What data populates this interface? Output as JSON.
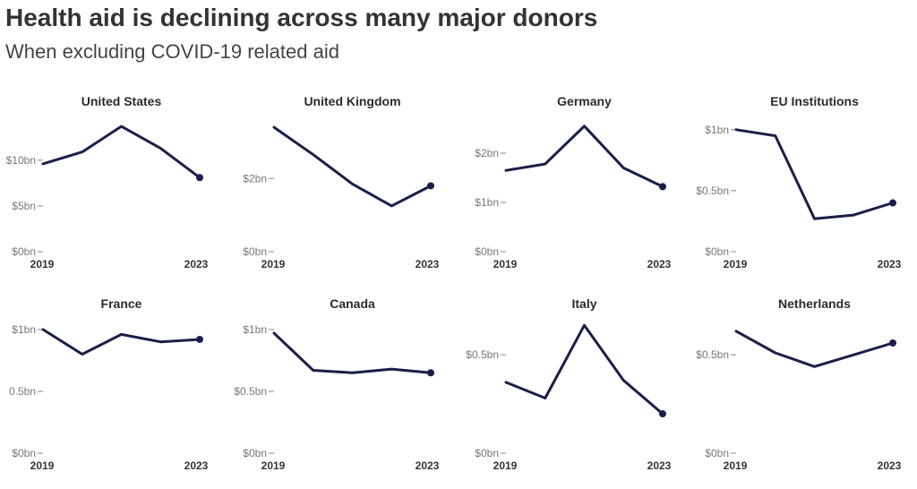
{
  "title": "Health aid is declining across many major donors",
  "subtitle": "When excluding COVID-19 related aid",
  "colors": {
    "line": "#1a1f4a",
    "tick": "#888888",
    "text": "#2b2b2b"
  },
  "chart_data": [
    {
      "type": "line",
      "title": "United States",
      "x": [
        2019,
        2020,
        2021,
        2022,
        2023
      ],
      "series": [
        {
          "values": [
            9.6,
            10.9,
            13.7,
            11.3,
            8.1
          ]
        }
      ],
      "ylim": [
        0,
        14
      ],
      "yticks": [
        0,
        5,
        10
      ],
      "ytick_labels": [
        "$0bn",
        "$5bn",
        "$10bn"
      ],
      "xtick_labels": [
        "2019",
        "2023"
      ]
    },
    {
      "type": "line",
      "title": "United Kingdom",
      "x": [
        2019,
        2020,
        2021,
        2022,
        2023
      ],
      "series": [
        {
          "values": [
            3.4,
            2.65,
            1.85,
            1.25,
            1.8
          ]
        }
      ],
      "ylim": [
        0,
        3.5
      ],
      "yticks": [
        0,
        2
      ],
      "ytick_labels": [
        "$0bn",
        "$2bn"
      ],
      "xtick_labels": [
        "2019",
        "2023"
      ]
    },
    {
      "type": "line",
      "title": "Germany",
      "x": [
        2019,
        2020,
        2021,
        2022,
        2023
      ],
      "series": [
        {
          "values": [
            1.65,
            1.78,
            2.55,
            1.7,
            1.32
          ]
        }
      ],
      "ylim": [
        0,
        2.6
      ],
      "yticks": [
        0,
        1,
        2
      ],
      "ytick_labels": [
        "$0bn",
        "$1bn",
        "$2bn"
      ],
      "xtick_labels": [
        "2019",
        "2023"
      ]
    },
    {
      "type": "line",
      "title": "EU Institutions",
      "x": [
        2019,
        2020,
        2021,
        2022,
        2023
      ],
      "series": [
        {
          "values": [
            1.0,
            0.95,
            0.27,
            0.3,
            0.4
          ]
        }
      ],
      "ylim": [
        0,
        1.05
      ],
      "yticks": [
        0,
        0.5,
        1
      ],
      "ytick_labels": [
        "$0bn",
        "$0.5bn",
        "$1bn"
      ],
      "xtick_labels": [
        "2019",
        "2023"
      ]
    },
    {
      "type": "line",
      "title": "France",
      "x": [
        2019,
        2020,
        2021,
        2022,
        2023
      ],
      "series": [
        {
          "values": [
            1.0,
            0.8,
            0.96,
            0.9,
            0.92
          ]
        }
      ],
      "ylim": [
        0,
        1.05
      ],
      "yticks": [
        0,
        0.5,
        1
      ],
      "ytick_labels": [
        "$0bn",
        "0.5bn",
        "$1bn"
      ],
      "xtick_labels": [
        "2019",
        "2023"
      ]
    },
    {
      "type": "line",
      "title": "Canada",
      "x": [
        2019,
        2020,
        2021,
        2022,
        2023
      ],
      "series": [
        {
          "values": [
            0.97,
            0.67,
            0.65,
            0.68,
            0.65
          ]
        }
      ],
      "ylim": [
        0,
        1.05
      ],
      "yticks": [
        0,
        0.5,
        1
      ],
      "ytick_labels": [
        "$0bn",
        "$0.5bn",
        "$1bn"
      ],
      "xtick_labels": [
        "2019",
        "2023"
      ]
    },
    {
      "type": "line",
      "title": "Italy",
      "x": [
        2019,
        2020,
        2021,
        2022,
        2023
      ],
      "series": [
        {
          "values": [
            0.36,
            0.28,
            0.65,
            0.37,
            0.2
          ]
        }
      ],
      "ylim": [
        0,
        0.66
      ],
      "yticks": [
        0,
        0.5
      ],
      "ytick_labels": [
        "$0bn",
        "$0.5bn"
      ],
      "xtick_labels": [
        "2019",
        "2023"
      ]
    },
    {
      "type": "line",
      "title": "Netherlands",
      "x": [
        2019,
        2020,
        2021,
        2022,
        2023
      ],
      "series": [
        {
          "values": [
            0.62,
            0.51,
            0.44,
            0.5,
            0.56
          ]
        }
      ],
      "ylim": [
        0,
        0.66
      ],
      "yticks": [
        0,
        0.5
      ],
      "ytick_labels": [
        "$0bn",
        "$0.5bn"
      ],
      "xtick_labels": [
        "2019",
        "2023"
      ]
    }
  ]
}
